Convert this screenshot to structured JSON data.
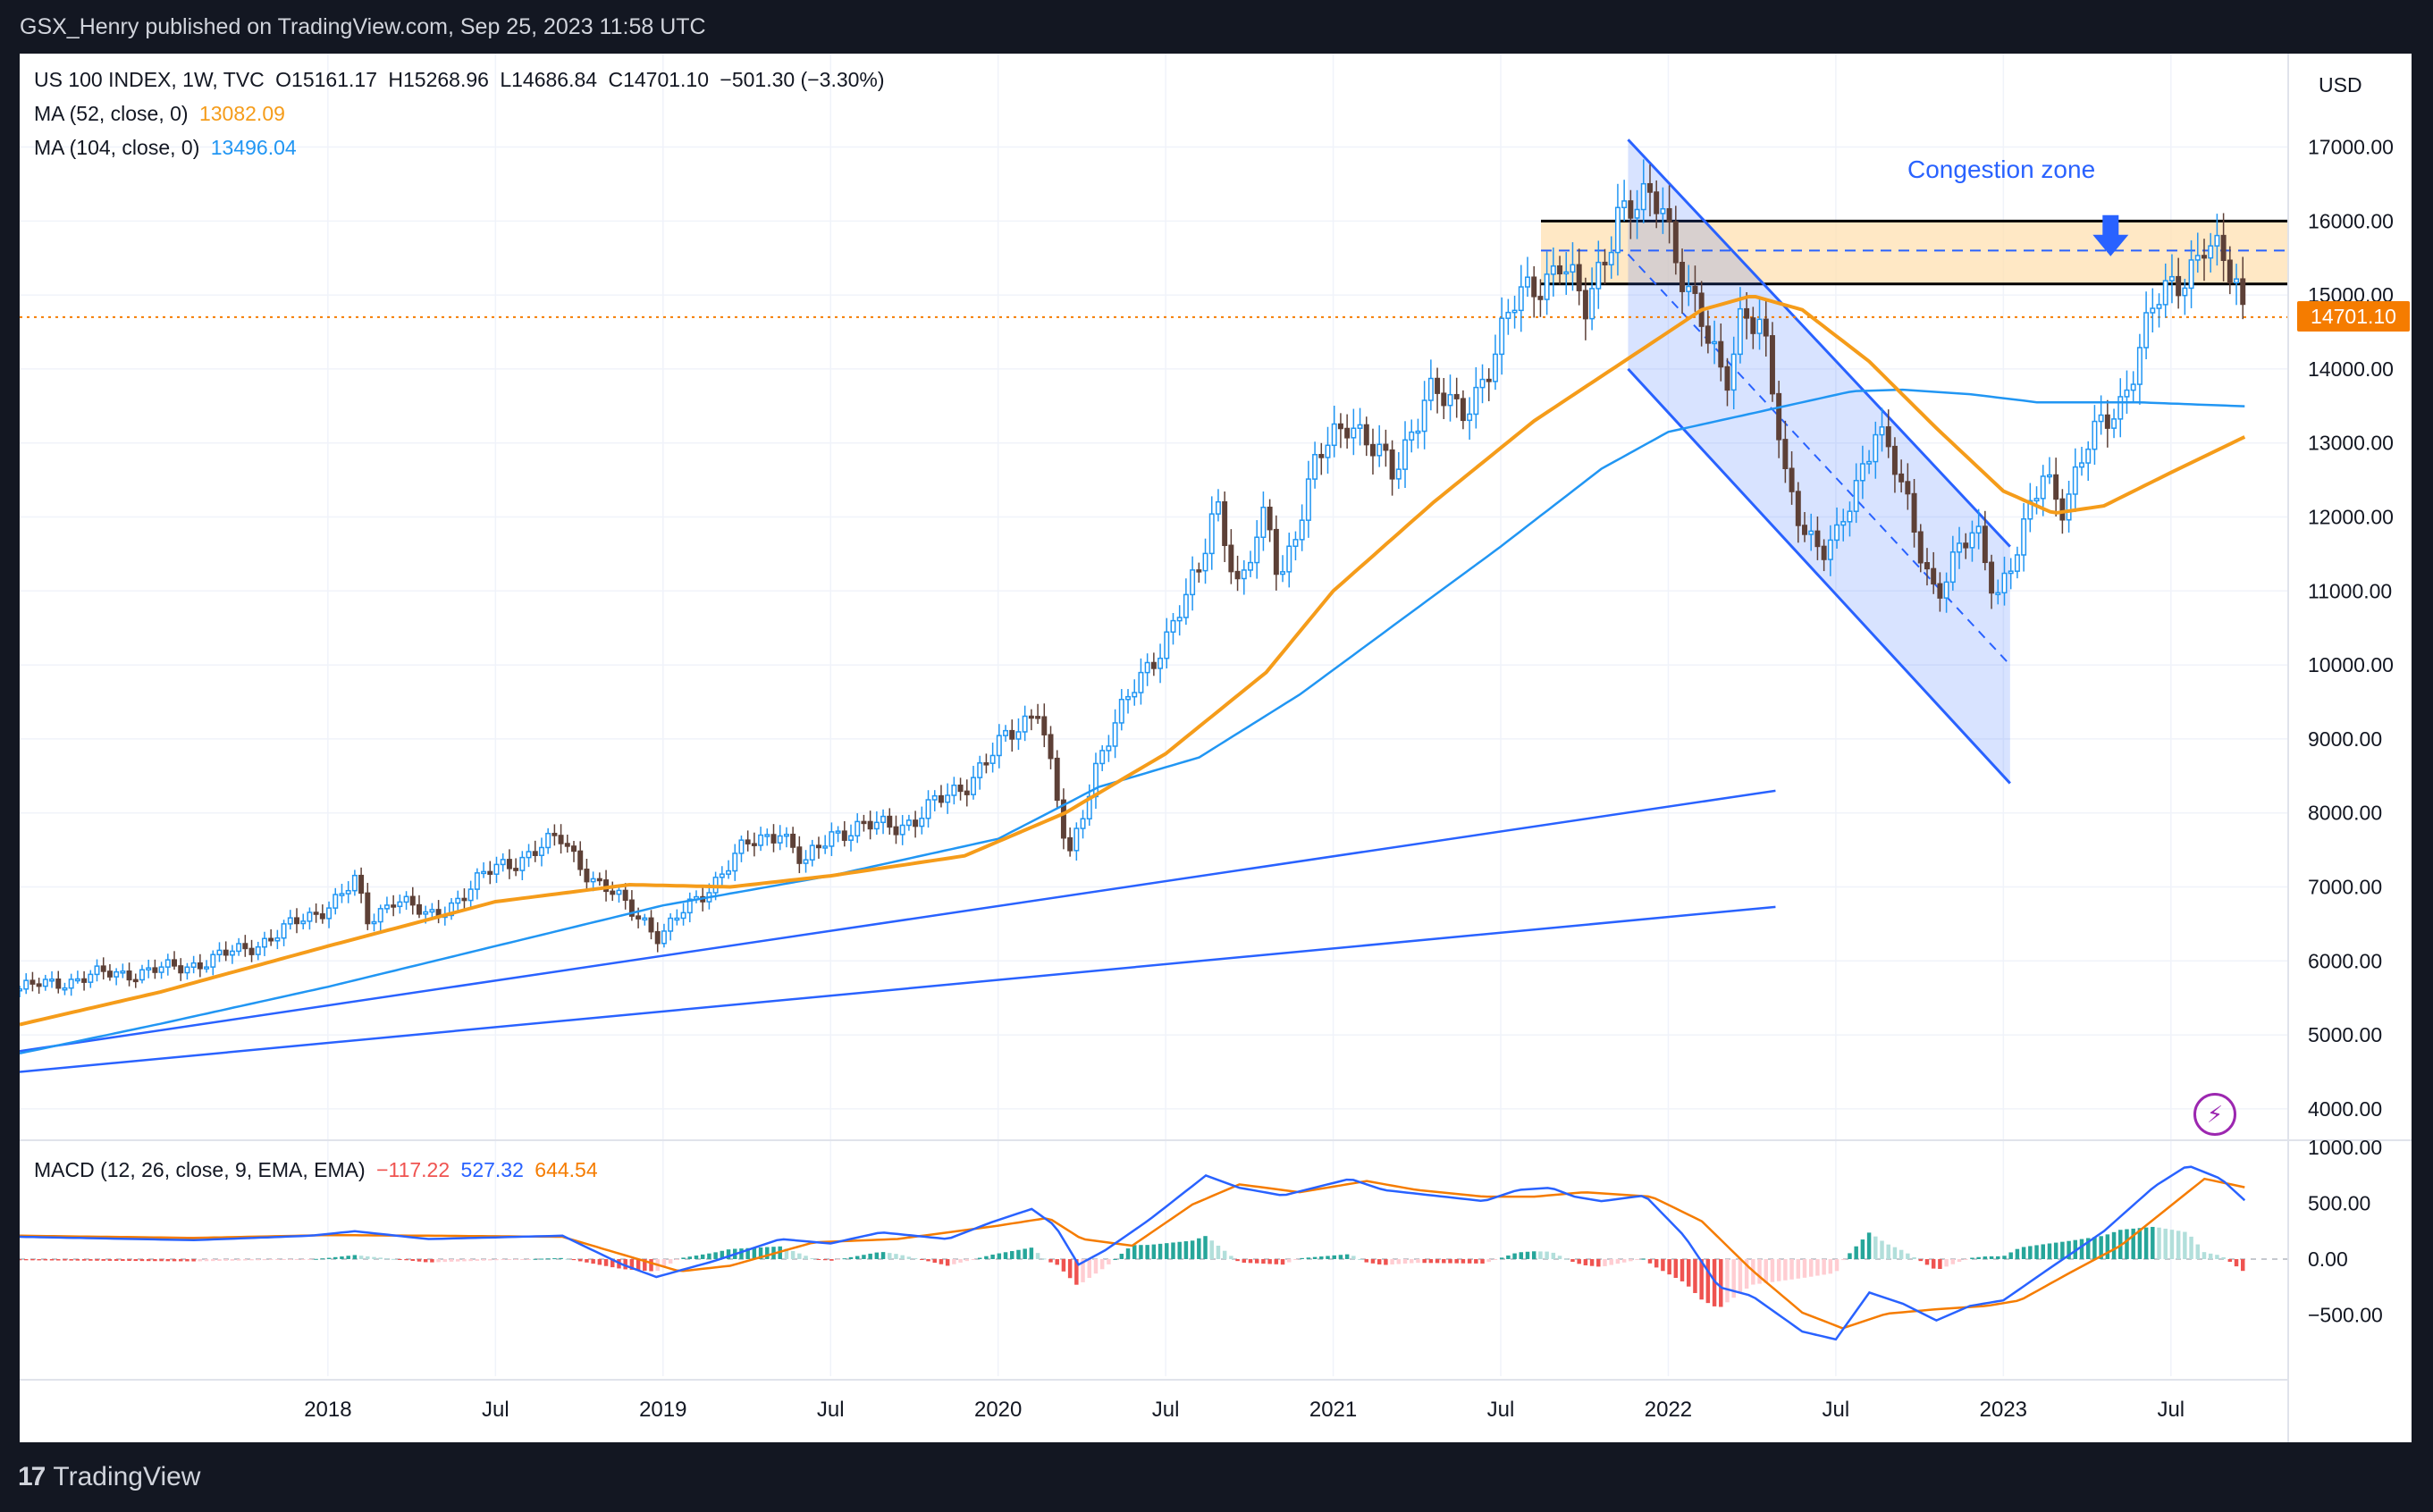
{
  "header": {
    "published": "GSX_Henry published on TradingView.com, Sep 25, 2023 11:58 UTC"
  },
  "footer": {
    "logo_mark": "17",
    "logo_text": "TradingView"
  },
  "legend": {
    "symbol": "US 100 INDEX, 1W, TVC",
    "open": "O15161.17",
    "high": "H15268.96",
    "low": "L14686.84",
    "close": "C14701.10",
    "change": "−501.30 (−3.30%)",
    "ma52_label": "MA (52, close, 0)",
    "ma52_value": "13082.09",
    "ma104_label": "MA (104, close, 0)",
    "ma104_value": "13496.04",
    "macd_label": "MACD (12, 26, close, 9, EMA, EMA)",
    "macd_hist": "−117.22",
    "macd_line": "527.32",
    "macd_signal": "644.54"
  },
  "currency": "USD",
  "last_price": "14701.10",
  "annotation": {
    "congestion": "Congestion zone"
  },
  "colors": {
    "up": "#2196f3",
    "down": "#5d4037",
    "ma52": "#f59c1a",
    "ma104": "#2196f3",
    "macd_line": "#2962ff",
    "signal_line": "#f57c00",
    "hist_pos": "#26a69a",
    "hist_neg": "#ef5350"
  },
  "chart_data": {
    "type": "candlestick",
    "title": "US 100 INDEX, 1W, TVC",
    "price_axis": {
      "range": [
        3600,
        17900
      ],
      "ticks": [
        4000,
        5000,
        6000,
        7000,
        8000,
        9000,
        10000,
        11000,
        12000,
        13000,
        14000,
        15000,
        16000,
        17000
      ],
      "labels": [
        "4000.00",
        "5000.00",
        "6000.00",
        "7000.00",
        "8000.00",
        "9000.00",
        "10000.00",
        "11000.00",
        "12000.00",
        "13000.00",
        "14000.00",
        "15000.00",
        "16000.00",
        "17000.00"
      ]
    },
    "time_axis": {
      "range": [
        2017.08,
        2023.85
      ],
      "ticks": [
        2018.0,
        2018.5,
        2019.0,
        2019.5,
        2020.0,
        2020.5,
        2021.0,
        2021.5,
        2022.0,
        2022.5,
        2023.0,
        2023.5
      ],
      "labels": [
        "2018",
        "Jul",
        "2019",
        "Jul",
        "2020",
        "Jul",
        "2021",
        "Jul",
        "2022",
        "Jul",
        "2023",
        "Jul"
      ]
    },
    "price_anchors": [
      [
        2017.08,
        5620
      ],
      [
        2017.3,
        5800
      ],
      [
        2017.55,
        5900
      ],
      [
        2017.75,
        6150
      ],
      [
        2017.95,
        6600
      ],
      [
        2018.08,
        7050
      ],
      [
        2018.12,
        6500
      ],
      [
        2018.2,
        6900
      ],
      [
        2018.3,
        6550
      ],
      [
        2018.5,
        7250
      ],
      [
        2018.7,
        7650
      ],
      [
        2018.8,
        7050
      ],
      [
        2018.95,
        6550
      ],
      [
        2018.99,
        6300
      ],
      [
        2019.05,
        6600
      ],
      [
        2019.25,
        7550
      ],
      [
        2019.35,
        7800
      ],
      [
        2019.42,
        7250
      ],
      [
        2019.5,
        7750
      ],
      [
        2019.62,
        7800
      ],
      [
        2019.75,
        7900
      ],
      [
        2019.9,
        8400
      ],
      [
        2020.05,
        9100
      ],
      [
        2020.12,
        9500
      ],
      [
        2020.17,
        8300
      ],
      [
        2020.21,
        7300
      ],
      [
        2020.3,
        8800
      ],
      [
        2020.45,
        10000
      ],
      [
        2020.6,
        11200
      ],
      [
        2020.65,
        12300
      ],
      [
        2020.72,
        11000
      ],
      [
        2020.8,
        12000
      ],
      [
        2020.84,
        11200
      ],
      [
        2020.95,
        12700
      ],
      [
        2021.05,
        13400
      ],
      [
        2021.18,
        12500
      ],
      [
        2021.28,
        13800
      ],
      [
        2021.38,
        13300
      ],
      [
        2021.55,
        14900
      ],
      [
        2021.68,
        15500
      ],
      [
        2021.75,
        14700
      ],
      [
        2021.85,
        16200
      ],
      [
        2021.9,
        16100
      ],
      [
        2021.98,
        16300
      ],
      [
        2022.05,
        15200
      ],
      [
        2022.12,
        14300
      ],
      [
        2022.17,
        13800
      ],
      [
        2022.22,
        14900
      ],
      [
        2022.28,
        14500
      ],
      [
        2022.35,
        12500
      ],
      [
        2022.42,
        11800
      ],
      [
        2022.46,
        11500
      ],
      [
        2022.5,
        11600
      ],
      [
        2022.55,
        12300
      ],
      [
        2022.62,
        13300
      ],
      [
        2022.67,
        12700
      ],
      [
        2022.75,
        11600
      ],
      [
        2022.8,
        11000
      ],
      [
        2022.87,
        11500
      ],
      [
        2022.92,
        11800
      ],
      [
        2022.98,
        11000
      ],
      [
        2023.05,
        11600
      ],
      [
        2023.12,
        12600
      ],
      [
        2023.18,
        12200
      ],
      [
        2023.25,
        12900
      ],
      [
        2023.35,
        13600
      ],
      [
        2023.45,
        14800
      ],
      [
        2023.52,
        15200
      ],
      [
        2023.6,
        15700
      ],
      [
        2023.65,
        15400
      ],
      [
        2023.7,
        15100
      ],
      [
        2023.72,
        14701.1
      ]
    ],
    "ma52_anchors": [
      [
        2017.08,
        5140
      ],
      [
        2017.5,
        5580
      ],
      [
        2018.0,
        6200
      ],
      [
        2018.5,
        6800
      ],
      [
        2018.9,
        7030
      ],
      [
        2019.2,
        7000
      ],
      [
        2019.5,
        7150
      ],
      [
        2019.9,
        7420
      ],
      [
        2020.2,
        8000
      ],
      [
        2020.5,
        8800
      ],
      [
        2020.8,
        9900
      ],
      [
        2021.0,
        11000
      ],
      [
        2021.3,
        12200
      ],
      [
        2021.6,
        13300
      ],
      [
        2021.9,
        14200
      ],
      [
        2022.1,
        14800
      ],
      [
        2022.25,
        14990
      ],
      [
        2022.4,
        14800
      ],
      [
        2022.6,
        14100
      ],
      [
        2022.8,
        13200
      ],
      [
        2023.0,
        12350
      ],
      [
        2023.15,
        12050
      ],
      [
        2023.3,
        12150
      ],
      [
        2023.5,
        12600
      ],
      [
        2023.72,
        13082.09
      ]
    ],
    "ma104_anchors": [
      [
        2017.08,
        4750
      ],
      [
        2017.5,
        5150
      ],
      [
        2018.0,
        5650
      ],
      [
        2018.5,
        6200
      ],
      [
        2019.0,
        6750
      ],
      [
        2019.5,
        7150
      ],
      [
        2020.0,
        7650
      ],
      [
        2020.3,
        8350
      ],
      [
        2020.6,
        8750
      ],
      [
        2020.9,
        9600
      ],
      [
        2021.2,
        10600
      ],
      [
        2021.5,
        11600
      ],
      [
        2021.8,
        12650
      ],
      [
        2022.0,
        13150
      ],
      [
        2022.3,
        13450
      ],
      [
        2022.55,
        13700
      ],
      [
        2022.7,
        13720
      ],
      [
        2022.9,
        13660
      ],
      [
        2023.1,
        13550
      ],
      [
        2023.4,
        13550
      ],
      [
        2023.72,
        13496.04
      ]
    ],
    "macd_axis": {
      "range": [
        -1050,
        1050
      ],
      "ticks": [
        -500,
        0,
        500,
        1000
      ],
      "labels": [
        "−500.00",
        "0.00",
        "500.00",
        "1000.00"
      ]
    },
    "macd_anchors": [
      [
        2017.08,
        200
      ],
      [
        2017.6,
        170
      ],
      [
        2017.95,
        210
      ],
      [
        2018.08,
        250
      ],
      [
        2018.3,
        180
      ],
      [
        2018.7,
        210
      ],
      [
        2018.88,
        -50
      ],
      [
        2018.98,
        -160
      ],
      [
        2019.15,
        -20
      ],
      [
        2019.35,
        180
      ],
      [
        2019.5,
        140
      ],
      [
        2019.65,
        240
      ],
      [
        2019.85,
        180
      ],
      [
        2019.98,
        330
      ],
      [
        2020.1,
        450
      ],
      [
        2020.17,
        300
      ],
      [
        2020.24,
        -50
      ],
      [
        2020.32,
        80
      ],
      [
        2020.45,
        350
      ],
      [
        2020.62,
        750
      ],
      [
        2020.72,
        640
      ],
      [
        2020.85,
        570
      ],
      [
        2021.05,
        720
      ],
      [
        2021.15,
        620
      ],
      [
        2021.3,
        570
      ],
      [
        2021.45,
        520
      ],
      [
        2021.55,
        620
      ],
      [
        2021.65,
        640
      ],
      [
        2021.72,
        560
      ],
      [
        2021.8,
        520
      ],
      [
        2021.93,
        570
      ],
      [
        2022.05,
        200
      ],
      [
        2022.15,
        -250
      ],
      [
        2022.25,
        -330
      ],
      [
        2022.4,
        -650
      ],
      [
        2022.5,
        -720
      ],
      [
        2022.6,
        -300
      ],
      [
        2022.7,
        -400
      ],
      [
        2022.8,
        -550
      ],
      [
        2022.9,
        -420
      ],
      [
        2023.0,
        -370
      ],
      [
        2023.12,
        -120
      ],
      [
        2023.3,
        250
      ],
      [
        2023.45,
        650
      ],
      [
        2023.55,
        840
      ],
      [
        2023.65,
        720
      ],
      [
        2023.72,
        527.32
      ]
    ],
    "signal_anchors": [
      [
        2017.08,
        210
      ],
      [
        2017.6,
        190
      ],
      [
        2018.0,
        215
      ],
      [
        2018.3,
        210
      ],
      [
        2018.7,
        200
      ],
      [
        2018.88,
        40
      ],
      [
        2019.05,
        -110
      ],
      [
        2019.2,
        -60
      ],
      [
        2019.45,
        150
      ],
      [
        2019.7,
        180
      ],
      [
        2020.0,
        300
      ],
      [
        2020.15,
        370
      ],
      [
        2020.25,
        180
      ],
      [
        2020.4,
        120
      ],
      [
        2020.58,
        490
      ],
      [
        2020.72,
        670
      ],
      [
        2020.9,
        600
      ],
      [
        2021.1,
        700
      ],
      [
        2021.25,
        620
      ],
      [
        2021.45,
        560
      ],
      [
        2021.6,
        560
      ],
      [
        2021.75,
        600
      ],
      [
        2021.95,
        560
      ],
      [
        2022.1,
        340
      ],
      [
        2022.25,
        -100
      ],
      [
        2022.4,
        -480
      ],
      [
        2022.52,
        -620
      ],
      [
        2022.65,
        -490
      ],
      [
        2022.8,
        -450
      ],
      [
        2022.95,
        -420
      ],
      [
        2023.05,
        -370
      ],
      [
        2023.2,
        -120
      ],
      [
        2023.35,
        120
      ],
      [
        2023.5,
        480
      ],
      [
        2023.6,
        720
      ],
      [
        2023.72,
        644.54
      ]
    ],
    "annotations": {
      "congestion_zone": {
        "price_range": [
          15150,
          16000
        ],
        "dashed_mid": 15600,
        "time_range": [
          2021.62,
          2023.85
        ]
      },
      "descending_channel": {
        "upper": [
          [
            2021.88,
            17100
          ],
          [
            2023.02,
            11600
          ]
        ],
        "lower": [
          [
            2021.88,
            14000
          ],
          [
            2023.02,
            8400
          ]
        ],
        "mid": [
          [
            2021.88,
            15550
          ],
          [
            2023.02,
            10000
          ]
        ]
      },
      "support_lines": [
        {
          "from": [
            2017.08,
            4780
          ],
          "to": [
            2022.32,
            8300
          ]
        },
        {
          "from": [
            2017.08,
            4500
          ],
          "to": [
            2022.32,
            6730
          ]
        }
      ]
    }
  }
}
